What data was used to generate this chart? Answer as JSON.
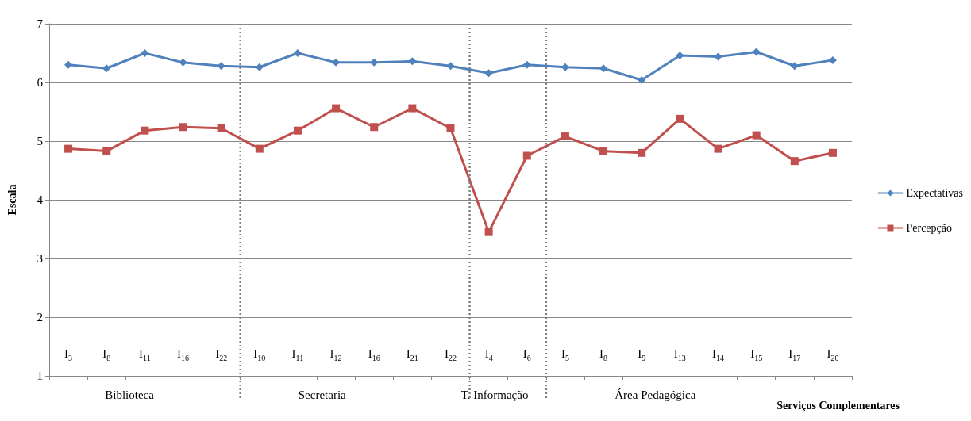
{
  "chart_data": {
    "type": "line",
    "ylabel": "Escala",
    "xlabel": "Serviços Complementares",
    "categories": [
      "I$_{3}$",
      "I$_{8}$",
      "I$_{11}$",
      "I$_{16}$",
      "I$_{22}$",
      "I$_{10}$",
      "I$_{11}$",
      "I$_{12}$",
      "I$_{16}$",
      "I$_{21}$",
      "I$_{22}$",
      "I$_{4}$",
      "I$_{6}$",
      "I$_{5}$",
      "I$_{8}$",
      "I$_{9}$",
      "I$_{13}$",
      "I$_{14}$",
      "I$_{15}$",
      "I$_{17}$",
      "I$_{20}$"
    ],
    "series": [
      {
        "name": "Expectativas",
        "color": "#4f81bd",
        "marker": "diamond",
        "values": [
          6.3,
          6.24,
          6.5,
          6.34,
          6.28,
          6.26,
          6.5,
          6.34,
          6.34,
          6.36,
          6.28,
          6.16,
          6.3,
          6.26,
          6.24,
          6.04,
          6.46,
          6.44,
          6.52,
          6.28,
          6.38
        ]
      },
      {
        "name": "Percepção",
        "color": "#c0504d",
        "marker": "square",
        "values": [
          4.87,
          4.83,
          5.18,
          5.24,
          5.22,
          4.87,
          5.18,
          5.56,
          5.24,
          5.56,
          5.22,
          3.45,
          4.75,
          5.08,
          4.83,
          4.8,
          5.38,
          4.87,
          5.1,
          4.66,
          4.8
        ]
      }
    ],
    "ylim": [
      1,
      7
    ],
    "yticks": [
      1,
      2,
      3,
      4,
      5,
      6,
      7
    ],
    "grid": "y",
    "legend": "right",
    "line_style": "solid",
    "annotations": [
      "Biblioteca",
      "Secretaria",
      "T. Informação",
      "Área Pedagógica"
    ]
  }
}
